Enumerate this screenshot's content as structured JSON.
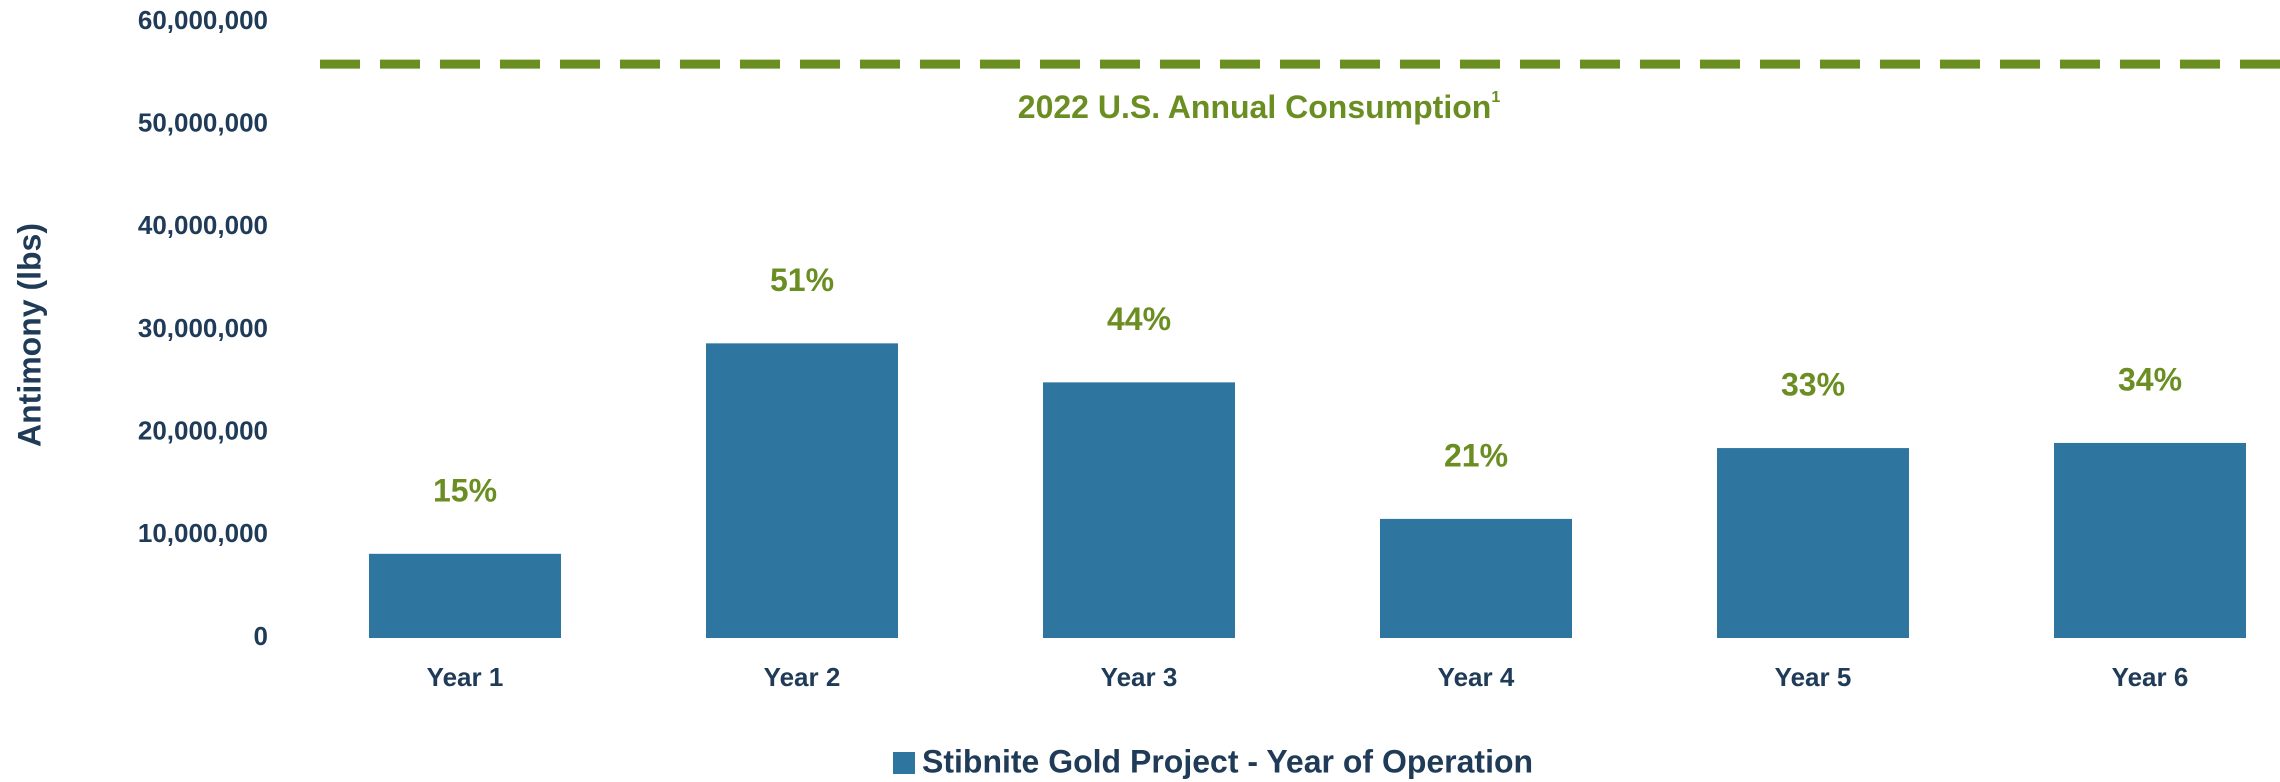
{
  "chart_data": {
    "type": "bar",
    "y_axis_label": "Antimony (lbs)",
    "categories": [
      "Year 1",
      "Year 2",
      "Year 3",
      "Year 4",
      "Year 5",
      "Year 6"
    ],
    "series": [
      {
        "name": "Stibnite Gold Project - Year of Operation",
        "color": "#2e75a0",
        "values": [
          8200000,
          28700000,
          24900000,
          11600000,
          18500000,
          19000000
        ]
      }
    ],
    "share_labels": [
      "15%",
      "51%",
      "44%",
      "21%",
      "33%",
      "34%"
    ],
    "ylim": [
      0,
      60000000
    ],
    "yticks": [
      0,
      {
        "value": 10000000,
        "label": "10,000,000"
      },
      {
        "value": 20000000,
        "label": "20,000,000"
      },
      {
        "value": 30000000,
        "label": "30,000,000"
      },
      {
        "value": 40000000,
        "label": "40,000,000"
      },
      {
        "value": 50000000,
        "label": "50,000,000"
      },
      {
        "value": 60000000,
        "label": "60,000,000"
      }
    ],
    "grid": false,
    "reference_line": {
      "value": 55900000,
      "label": "2022 U.S. Annual Consumption",
      "footnote": "1",
      "color": "#6b8e23",
      "style": "dashed"
    },
    "legend": "bottom"
  }
}
